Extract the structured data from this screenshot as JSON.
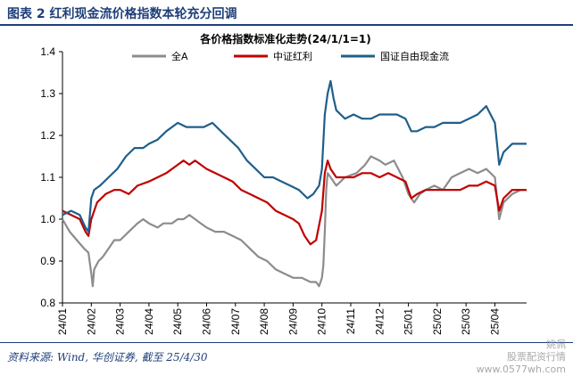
{
  "header": {
    "title": "图表 2 红利现金流价格指数本轮充分回调"
  },
  "source": "资料来源: Wind, 华创证券, 截至 25/4/30",
  "watermark": {
    "line1": "姚佩",
    "line2": "股票配资行情",
    "line3": "www.0577wh.com"
  },
  "colors": {
    "brand": "#1f3f7a",
    "all_a": "#8c8c8c",
    "csi_dividend": "#c00000",
    "guozheng_fcf": "#1f5f8b"
  },
  "chart_data": {
    "type": "line",
    "title": "各价格指数标准化走势(24/1/1=1)",
    "xlabel": "",
    "ylabel": "",
    "ylim": [
      0.8,
      1.4
    ],
    "yticks": [
      "1.4",
      "1.3",
      "1.2",
      "1.1",
      "1.0",
      "0.9",
      "0.8"
    ],
    "xticks": [
      "24/01",
      "24/02",
      "24/03",
      "24/04",
      "24/05",
      "24/06",
      "24/07",
      "24/08",
      "24/09",
      "24/10",
      "24/11",
      "24/12",
      "25/01",
      "25/02",
      "25/03",
      "25/04"
    ],
    "legend_position": "top",
    "grid": false,
    "series": [
      {
        "name": "全A",
        "color": "#8c8c8c",
        "points": [
          [
            0,
            1.0
          ],
          [
            0.25,
            0.97
          ],
          [
            0.5,
            0.95
          ],
          [
            0.75,
            0.93
          ],
          [
            0.9,
            0.92
          ],
          [
            1.0,
            0.87
          ],
          [
            1.05,
            0.84
          ],
          [
            1.1,
            0.88
          ],
          [
            1.25,
            0.9
          ],
          [
            1.4,
            0.91
          ],
          [
            1.6,
            0.93
          ],
          [
            1.8,
            0.95
          ],
          [
            2.0,
            0.95
          ],
          [
            2.3,
            0.97
          ],
          [
            2.6,
            0.99
          ],
          [
            2.8,
            1.0
          ],
          [
            3.0,
            0.99
          ],
          [
            3.3,
            0.98
          ],
          [
            3.5,
            0.99
          ],
          [
            3.8,
            0.99
          ],
          [
            4.0,
            1.0
          ],
          [
            4.2,
            1.0
          ],
          [
            4.4,
            1.01
          ],
          [
            4.6,
            1.0
          ],
          [
            4.8,
            0.99
          ],
          [
            5.0,
            0.98
          ],
          [
            5.3,
            0.97
          ],
          [
            5.6,
            0.97
          ],
          [
            5.9,
            0.96
          ],
          [
            6.2,
            0.95
          ],
          [
            6.5,
            0.93
          ],
          [
            6.8,
            0.91
          ],
          [
            7.1,
            0.9
          ],
          [
            7.4,
            0.88
          ],
          [
            7.7,
            0.87
          ],
          [
            8.0,
            0.86
          ],
          [
            8.3,
            0.86
          ],
          [
            8.6,
            0.85
          ],
          [
            8.8,
            0.85
          ],
          [
            8.9,
            0.84
          ],
          [
            9.0,
            0.86
          ],
          [
            9.05,
            0.89
          ],
          [
            9.1,
            0.97
          ],
          [
            9.15,
            1.07
          ],
          [
            9.2,
            1.11
          ],
          [
            9.3,
            1.1
          ],
          [
            9.5,
            1.08
          ],
          [
            9.8,
            1.1
          ],
          [
            10.2,
            1.11
          ],
          [
            10.5,
            1.13
          ],
          [
            10.7,
            1.15
          ],
          [
            11.0,
            1.14
          ],
          [
            11.2,
            1.13
          ],
          [
            11.5,
            1.14
          ],
          [
            11.8,
            1.1
          ],
          [
            12.0,
            1.06
          ],
          [
            12.2,
            1.04
          ],
          [
            12.4,
            1.06
          ],
          [
            12.6,
            1.07
          ],
          [
            12.9,
            1.08
          ],
          [
            13.2,
            1.07
          ],
          [
            13.5,
            1.1
          ],
          [
            13.8,
            1.11
          ],
          [
            14.1,
            1.12
          ],
          [
            14.4,
            1.11
          ],
          [
            14.7,
            1.12
          ],
          [
            15.0,
            1.1
          ],
          [
            15.15,
            1.0
          ],
          [
            15.3,
            1.04
          ],
          [
            15.6,
            1.06
          ],
          [
            15.9,
            1.07
          ],
          [
            16.1,
            1.07
          ]
        ]
      },
      {
        "name": "中证红利",
        "color": "#c00000",
        "points": [
          [
            0,
            1.02
          ],
          [
            0.3,
            1.01
          ],
          [
            0.6,
            1.0
          ],
          [
            0.8,
            0.97
          ],
          [
            0.9,
            0.96
          ],
          [
            1.0,
            1.0
          ],
          [
            1.2,
            1.04
          ],
          [
            1.5,
            1.06
          ],
          [
            1.8,
            1.07
          ],
          [
            2.0,
            1.07
          ],
          [
            2.3,
            1.06
          ],
          [
            2.6,
            1.08
          ],
          [
            3.0,
            1.09
          ],
          [
            3.3,
            1.1
          ],
          [
            3.6,
            1.11
          ],
          [
            4.0,
            1.13
          ],
          [
            4.2,
            1.14
          ],
          [
            4.4,
            1.13
          ],
          [
            4.6,
            1.14
          ],
          [
            4.8,
            1.13
          ],
          [
            5.0,
            1.12
          ],
          [
            5.3,
            1.11
          ],
          [
            5.6,
            1.1
          ],
          [
            5.9,
            1.09
          ],
          [
            6.2,
            1.07
          ],
          [
            6.5,
            1.06
          ],
          [
            6.8,
            1.05
          ],
          [
            7.1,
            1.04
          ],
          [
            7.4,
            1.02
          ],
          [
            7.7,
            1.01
          ],
          [
            8.0,
            1.0
          ],
          [
            8.2,
            0.99
          ],
          [
            8.4,
            0.96
          ],
          [
            8.6,
            0.94
          ],
          [
            8.8,
            0.95
          ],
          [
            9.0,
            1.02
          ],
          [
            9.1,
            1.11
          ],
          [
            9.2,
            1.14
          ],
          [
            9.3,
            1.12
          ],
          [
            9.5,
            1.1
          ],
          [
            9.8,
            1.1
          ],
          [
            10.1,
            1.1
          ],
          [
            10.4,
            1.11
          ],
          [
            10.7,
            1.11
          ],
          [
            11.0,
            1.1
          ],
          [
            11.3,
            1.11
          ],
          [
            11.6,
            1.1
          ],
          [
            11.9,
            1.09
          ],
          [
            12.1,
            1.05
          ],
          [
            12.3,
            1.06
          ],
          [
            12.6,
            1.07
          ],
          [
            12.9,
            1.07
          ],
          [
            13.2,
            1.07
          ],
          [
            13.5,
            1.07
          ],
          [
            13.8,
            1.07
          ],
          [
            14.1,
            1.08
          ],
          [
            14.4,
            1.08
          ],
          [
            14.7,
            1.09
          ],
          [
            15.0,
            1.08
          ],
          [
            15.15,
            1.02
          ],
          [
            15.3,
            1.05
          ],
          [
            15.6,
            1.07
          ],
          [
            15.9,
            1.07
          ],
          [
            16.1,
            1.07
          ]
        ]
      },
      {
        "name": "国证自由现金流",
        "color": "#1f5f8b",
        "points": [
          [
            0,
            1.01
          ],
          [
            0.3,
            1.02
          ],
          [
            0.6,
            1.01
          ],
          [
            0.8,
            0.98
          ],
          [
            0.9,
            0.97
          ],
          [
            1.0,
            1.05
          ],
          [
            1.1,
            1.07
          ],
          [
            1.3,
            1.08
          ],
          [
            1.6,
            1.1
          ],
          [
            1.9,
            1.12
          ],
          [
            2.2,
            1.15
          ],
          [
            2.5,
            1.17
          ],
          [
            2.8,
            1.17
          ],
          [
            3.0,
            1.18
          ],
          [
            3.3,
            1.19
          ],
          [
            3.6,
            1.21
          ],
          [
            4.0,
            1.23
          ],
          [
            4.3,
            1.22
          ],
          [
            4.6,
            1.22
          ],
          [
            4.9,
            1.22
          ],
          [
            5.2,
            1.23
          ],
          [
            5.5,
            1.21
          ],
          [
            5.8,
            1.19
          ],
          [
            6.1,
            1.17
          ],
          [
            6.4,
            1.14
          ],
          [
            6.7,
            1.12
          ],
          [
            7.0,
            1.1
          ],
          [
            7.3,
            1.1
          ],
          [
            7.6,
            1.09
          ],
          [
            7.9,
            1.08
          ],
          [
            8.2,
            1.07
          ],
          [
            8.5,
            1.05
          ],
          [
            8.7,
            1.06
          ],
          [
            8.9,
            1.08
          ],
          [
            9.0,
            1.12
          ],
          [
            9.1,
            1.25
          ],
          [
            9.2,
            1.3
          ],
          [
            9.3,
            1.33
          ],
          [
            9.4,
            1.29
          ],
          [
            9.5,
            1.26
          ],
          [
            9.8,
            1.24
          ],
          [
            10.1,
            1.25
          ],
          [
            10.4,
            1.24
          ],
          [
            10.7,
            1.24
          ],
          [
            11.0,
            1.25
          ],
          [
            11.3,
            1.25
          ],
          [
            11.6,
            1.25
          ],
          [
            11.9,
            1.24
          ],
          [
            12.1,
            1.21
          ],
          [
            12.3,
            1.21
          ],
          [
            12.6,
            1.22
          ],
          [
            12.9,
            1.22
          ],
          [
            13.2,
            1.23
          ],
          [
            13.5,
            1.23
          ],
          [
            13.8,
            1.23
          ],
          [
            14.1,
            1.24
          ],
          [
            14.4,
            1.25
          ],
          [
            14.7,
            1.27
          ],
          [
            15.0,
            1.23
          ],
          [
            15.15,
            1.13
          ],
          [
            15.3,
            1.16
          ],
          [
            15.6,
            1.18
          ],
          [
            15.9,
            1.18
          ],
          [
            16.1,
            1.18
          ]
        ]
      }
    ]
  }
}
